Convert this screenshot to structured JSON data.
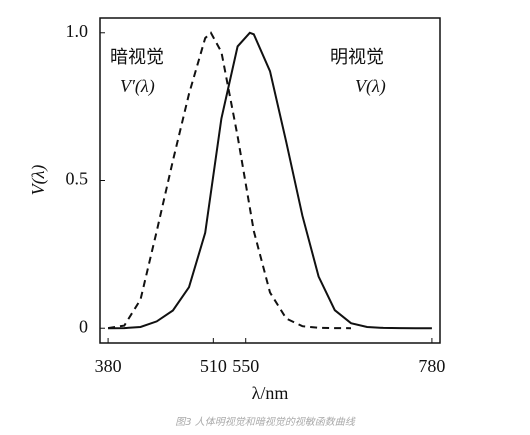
{
  "chart_data": {
    "type": "line",
    "caption": "图3 人体明视觉和暗视觉的视敏函数曲线",
    "xlabel": "λ/nm",
    "ylabel": "V(λ)",
    "annotations": [
      "暗视觉",
      "V′(λ)",
      "明视觉",
      "V(λ)"
    ],
    "xlim": [
      370,
      790
    ],
    "ylim": [
      -0.05,
      1.05
    ],
    "xticks": [
      380,
      510,
      550,
      780
    ],
    "yticks": [
      0,
      0.5,
      {
        "value": 1,
        "label": "1.0"
      }
    ],
    "series": [
      {
        "name": "V′(λ)",
        "color": "#111111",
        "line_style": "dashed",
        "x": [
          380,
          400,
          420,
          440,
          460,
          480,
          500,
          507,
          520,
          540,
          560,
          580,
          600,
          620,
          640,
          660,
          680
        ],
        "values": [
          0.0006,
          0.009,
          0.097,
          0.328,
          0.567,
          0.793,
          0.982,
          1.0,
          0.935,
          0.65,
          0.329,
          0.121,
          0.033,
          0.007,
          0.0015,
          0.0003,
          0.0001
        ]
      },
      {
        "name": "V(λ)",
        "color": "#111111",
        "line_style": "solid",
        "x": [
          380,
          400,
          420,
          440,
          460,
          480,
          500,
          520,
          540,
          555,
          560,
          580,
          600,
          620,
          640,
          660,
          680,
          700,
          720,
          740,
          760,
          780
        ],
        "values": [
          4e-05,
          0.0004,
          0.004,
          0.023,
          0.06,
          0.139,
          0.323,
          0.71,
          0.954,
          1.0,
          0.995,
          0.87,
          0.631,
          0.381,
          0.175,
          0.061,
          0.017,
          0.004,
          0.001,
          0.0003,
          0.0001,
          2e-05
        ]
      }
    ]
  }
}
